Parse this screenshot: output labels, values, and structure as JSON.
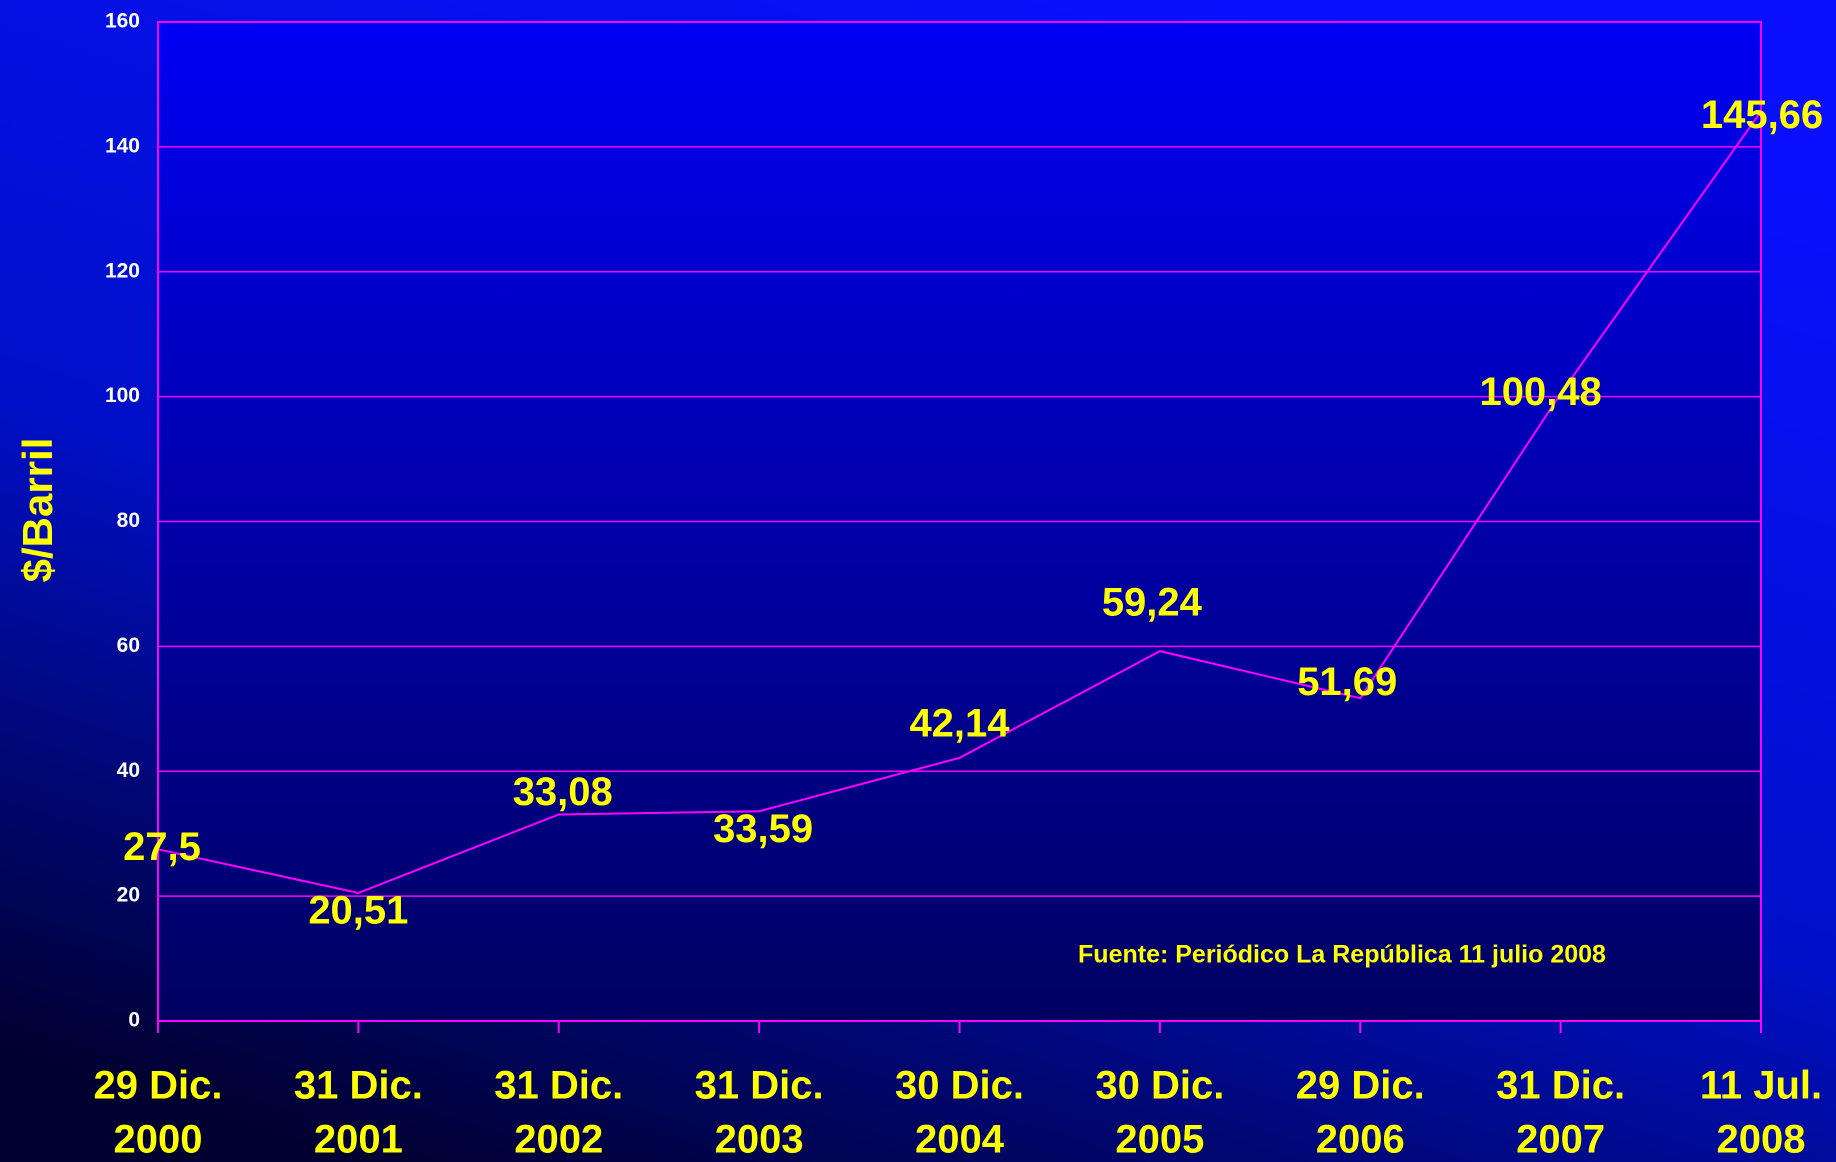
{
  "chart_data": {
    "type": "line",
    "ylabel": "$/Barril",
    "annotation": "Fuente: Periódico La República 11 julio 2008",
    "categories": [
      [
        "29 Dic.",
        "2000"
      ],
      [
        "31 Dic.",
        "2001"
      ],
      [
        "31 Dic.",
        "2002"
      ],
      [
        "31 Dic.",
        "2003"
      ],
      [
        "30 Dic.",
        "2004"
      ],
      [
        "30 Dic.",
        "2005"
      ],
      [
        "29 Dic.",
        "2006"
      ],
      [
        "31 Dic.",
        "2007"
      ],
      [
        "11 Jul.",
        "2008"
      ]
    ],
    "values": [
      27.5,
      20.51,
      33.08,
      33.59,
      42.14,
      59.24,
      51.69,
      100.48,
      145.66
    ],
    "value_labels": [
      "27,5",
      "20,51",
      "33,08",
      "33,59",
      "42,14",
      "59,24",
      "51,69",
      "100,48",
      "145,66"
    ],
    "color": "#ff00ff",
    "ylim": [
      0,
      160
    ],
    "yticks": [
      0,
      20,
      40,
      60,
      80,
      100,
      120,
      140,
      160
    ],
    "grid": true
  }
}
